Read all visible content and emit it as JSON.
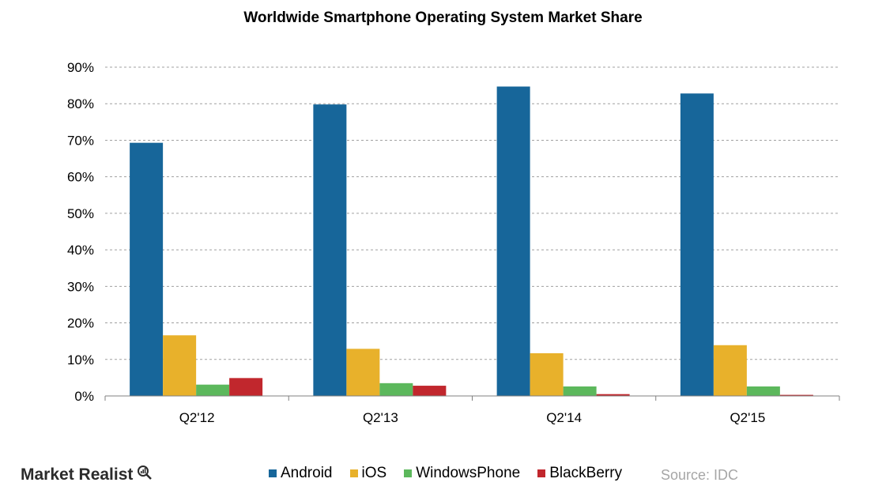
{
  "chart_data": {
    "type": "bar",
    "title": "Worldwide Smartphone Operating System Market Share",
    "categories": [
      "Q2'12",
      "Q2'13",
      "Q2'14",
      "Q2'15"
    ],
    "series": [
      {
        "name": "Android",
        "color": "#17669a",
        "values": [
          69.3,
          79.8,
          84.7,
          82.8
        ]
      },
      {
        "name": "iOS",
        "color": "#e8b12b",
        "values": [
          16.6,
          12.9,
          11.7,
          13.9
        ]
      },
      {
        "name": "WindowsPhone",
        "color": "#5cb85c",
        "values": [
          3.1,
          3.5,
          2.6,
          2.6
        ]
      },
      {
        "name": "BlackBerry",
        "color": "#c1272d",
        "values": [
          4.9,
          2.8,
          0.5,
          0.3
        ]
      }
    ],
    "ylim": [
      0,
      90
    ],
    "yticks": [
      "0%",
      "10%",
      "20%",
      "30%",
      "40%",
      "50%",
      "60%",
      "70%",
      "80%",
      "90%"
    ],
    "grid": true,
    "legend_position": "bottom"
  },
  "footer": {
    "brand": "Market Realist",
    "source": "Source: IDC"
  }
}
